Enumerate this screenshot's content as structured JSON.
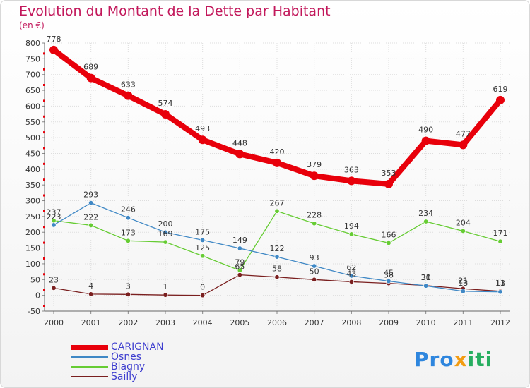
{
  "chart_data": {
    "type": "line",
    "title": "Evolution du Montant de la Dette par Habitant",
    "subtitle": "(en €)",
    "x": [
      "2000",
      "2001",
      "2002",
      "2003",
      "2004",
      "2005",
      "2006",
      "2007",
      "2008",
      "2009",
      "2010",
      "2011",
      "2012"
    ],
    "ylim": [
      -50,
      800
    ],
    "yticks": [
      -50,
      0,
      50,
      100,
      150,
      200,
      250,
      300,
      350,
      400,
      450,
      500,
      550,
      600,
      650,
      700,
      750,
      800
    ],
    "ytick_labels": [
      "-50",
      "0",
      "50",
      "100",
      "150",
      "200",
      "250",
      "300",
      "350",
      "400",
      "450",
      "500",
      "550",
      "600",
      "650",
      "700",
      "750",
      "800"
    ],
    "grid": true,
    "legend_position": "bottom-left",
    "series": [
      {
        "name": "CARIGNAN",
        "color": "#e8000b",
        "values": [
          778,
          689,
          633,
          574,
          493,
          448,
          420,
          379,
          363,
          353,
          490,
          477,
          619
        ]
      },
      {
        "name": "Osnes",
        "color": "#3f88c5",
        "values": [
          223,
          293,
          246,
          200,
          175,
          149,
          122,
          93,
          62,
          45,
          30,
          13,
          11
        ]
      },
      {
        "name": "Blagny",
        "color": "#66cc33",
        "values": [
          237,
          222,
          173,
          169,
          125,
          79,
          267,
          228,
          194,
          166,
          234,
          204,
          171
        ]
      },
      {
        "name": "Sailly",
        "color": "#7a1f1f",
        "values": [
          23,
          4,
          3,
          1,
          0,
          65,
          58,
          50,
          43,
          38,
          31,
          21,
          13
        ]
      }
    ],
    "point_labels": [
      [
        "778",
        "689",
        "633",
        "574",
        "493",
        "448",
        "420",
        "379",
        "363",
        "353",
        "490",
        "477",
        "619"
      ],
      [
        "223",
        "293",
        "246",
        "200",
        "175",
        "149",
        "122",
        "93",
        "62",
        "45",
        "30",
        "13",
        "11"
      ],
      [
        "237",
        "222",
        "173",
        "169",
        "125",
        "79",
        "267",
        "228",
        "194",
        "166",
        "234",
        "204",
        "171"
      ],
      [
        "23",
        "4",
        "3",
        "1",
        "0",
        "65",
        "58",
        "50",
        "43",
        "38",
        "31",
        "21",
        "13"
      ]
    ]
  },
  "logo": {
    "part1": "Pro",
    "part2": "x",
    "part3": "iti"
  }
}
